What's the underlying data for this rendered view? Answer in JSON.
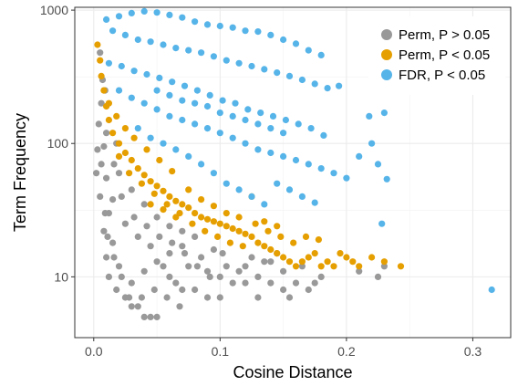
{
  "chart_data": {
    "type": "scatter",
    "xlabel": "Cosine Distance",
    "ylabel": "Term Frequency",
    "xlim": [
      -0.015,
      0.33
    ],
    "ylim": [
      3.5,
      1050
    ],
    "y_scale": "log",
    "x_ticks": [
      {
        "value": 0.0,
        "label": "0.0"
      },
      {
        "value": 0.1,
        "label": "0.1"
      },
      {
        "value": 0.2,
        "label": "0.2"
      },
      {
        "value": 0.3,
        "label": "0.3"
      }
    ],
    "y_ticks": [
      {
        "value": 10,
        "label": "10"
      },
      {
        "value": 100,
        "label": "100"
      },
      {
        "value": 1000,
        "label": "1000"
      }
    ],
    "grid": true,
    "legend_position": "top-right",
    "colors": {
      "grey": "#999999",
      "orange": "#e69f00",
      "blue": "#56b4e9"
    },
    "series": [
      {
        "name": "Perm, P > 0.05",
        "color": "#999999",
        "points": [
          [
            0.005,
            480
          ],
          [
            0.007,
            300
          ],
          [
            0.006,
            200
          ],
          [
            0.004,
            140
          ],
          [
            0.008,
            95
          ],
          [
            0.006,
            70
          ],
          [
            0.01,
            55
          ],
          [
            0.005,
            40
          ],
          [
            0.012,
            30
          ],
          [
            0.008,
            22
          ],
          [
            0.015,
            18
          ],
          [
            0.01,
            14
          ],
          [
            0.02,
            12
          ],
          [
            0.012,
            10
          ],
          [
            0.018,
            8
          ],
          [
            0.025,
            7
          ],
          [
            0.03,
            6
          ],
          [
            0.035,
            6
          ],
          [
            0.04,
            5
          ],
          [
            0.045,
            5
          ],
          [
            0.05,
            5
          ],
          [
            0.03,
            9
          ],
          [
            0.04,
            11
          ],
          [
            0.05,
            13
          ],
          [
            0.06,
            10
          ],
          [
            0.07,
            8
          ],
          [
            0.08,
            8
          ],
          [
            0.09,
            7
          ],
          [
            0.1,
            7
          ],
          [
            0.11,
            9
          ],
          [
            0.12,
            12
          ],
          [
            0.13,
            10
          ],
          [
            0.14,
            9
          ],
          [
            0.15,
            8
          ],
          [
            0.155,
            7
          ],
          [
            0.16,
            9
          ],
          [
            0.17,
            8
          ],
          [
            0.175,
            9
          ],
          [
            0.06,
            15
          ],
          [
            0.07,
            17
          ],
          [
            0.085,
            14
          ],
          [
            0.095,
            16
          ],
          [
            0.105,
            12
          ],
          [
            0.115,
            11
          ],
          [
            0.125,
            14
          ],
          [
            0.135,
            13
          ],
          [
            0.145,
            15
          ],
          [
            0.18,
            10
          ],
          [
            0.21,
            11
          ],
          [
            0.225,
            10
          ],
          [
            0.23,
            12
          ],
          [
            0.165,
            12
          ],
          [
            0.02,
            60
          ],
          [
            0.03,
            45
          ],
          [
            0.04,
            35
          ],
          [
            0.05,
            28
          ],
          [
            0.06,
            24
          ],
          [
            0.07,
            22
          ],
          [
            0.08,
            20
          ],
          [
            0.035,
            20
          ],
          [
            0.045,
            17
          ],
          [
            0.055,
            12
          ],
          [
            0.065,
            9
          ],
          [
            0.075,
            12
          ],
          [
            0.025,
            25
          ],
          [
            0.015,
            38
          ],
          [
            0.01,
            120
          ],
          [
            0.003,
            90
          ],
          [
            0.009,
            250
          ],
          [
            0.002,
            60
          ],
          [
            0.009,
            30
          ],
          [
            0.011,
            20
          ],
          [
            0.016,
            14
          ],
          [
            0.022,
            10
          ],
          [
            0.028,
            7
          ],
          [
            0.038,
            7
          ],
          [
            0.048,
            8
          ],
          [
            0.058,
            7
          ],
          [
            0.068,
            6
          ],
          [
            0.09,
            11
          ],
          [
            0.1,
            10
          ],
          [
            0.12,
            9
          ],
          [
            0.13,
            7
          ],
          [
            0.14,
            13
          ],
          [
            0.15,
            11
          ],
          [
            0.016,
            70
          ],
          [
            0.018,
            100
          ],
          [
            0.022,
            40
          ],
          [
            0.032,
            28
          ],
          [
            0.042,
            24
          ],
          [
            0.052,
            20
          ],
          [
            0.062,
            18
          ],
          [
            0.072,
            15
          ],
          [
            0.082,
            12
          ],
          [
            0.092,
            10
          ],
          [
            0.102,
            15
          ]
        ]
      },
      {
        "name": "Perm, P < 0.05",
        "color": "#e69f00",
        "points": [
          [
            0.003,
            550
          ],
          [
            0.005,
            420
          ],
          [
            0.006,
            320
          ],
          [
            0.008,
            250
          ],
          [
            0.01,
            190
          ],
          [
            0.012,
            150
          ],
          [
            0.015,
            120
          ],
          [
            0.02,
            100
          ],
          [
            0.025,
            85
          ],
          [
            0.03,
            75
          ],
          [
            0.035,
            65
          ],
          [
            0.04,
            58
          ],
          [
            0.045,
            52
          ],
          [
            0.05,
            48
          ],
          [
            0.055,
            44
          ],
          [
            0.06,
            40
          ],
          [
            0.065,
            37
          ],
          [
            0.07,
            35
          ],
          [
            0.075,
            33
          ],
          [
            0.08,
            30
          ],
          [
            0.085,
            28
          ],
          [
            0.09,
            27
          ],
          [
            0.095,
            26
          ],
          [
            0.1,
            25
          ],
          [
            0.105,
            24
          ],
          [
            0.11,
            23
          ],
          [
            0.115,
            22
          ],
          [
            0.12,
            21
          ],
          [
            0.125,
            20
          ],
          [
            0.13,
            18
          ],
          [
            0.135,
            17
          ],
          [
            0.14,
            16
          ],
          [
            0.145,
            15
          ],
          [
            0.15,
            14
          ],
          [
            0.155,
            13
          ],
          [
            0.16,
            12
          ],
          [
            0.165,
            13
          ],
          [
            0.17,
            14
          ],
          [
            0.175,
            15
          ],
          [
            0.18,
            12
          ],
          [
            0.185,
            13
          ],
          [
            0.19,
            12
          ],
          [
            0.195,
            15
          ],
          [
            0.2,
            14
          ],
          [
            0.205,
            13
          ],
          [
            0.21,
            12
          ],
          [
            0.22,
            14
          ],
          [
            0.23,
            13
          ],
          [
            0.243,
            12
          ],
          [
            0.02,
            80
          ],
          [
            0.028,
            60
          ],
          [
            0.038,
            50
          ],
          [
            0.048,
            42
          ],
          [
            0.058,
            35
          ],
          [
            0.068,
            30
          ],
          [
            0.078,
            25
          ],
          [
            0.088,
            22
          ],
          [
            0.098,
            20
          ],
          [
            0.108,
            18
          ],
          [
            0.118,
            17
          ],
          [
            0.128,
            25
          ],
          [
            0.138,
            22
          ],
          [
            0.148,
            20
          ],
          [
            0.158,
            18
          ],
          [
            0.168,
            20
          ],
          [
            0.178,
            19
          ],
          [
            0.045,
            35
          ],
          [
            0.055,
            32
          ],
          [
            0.065,
            28
          ],
          [
            0.075,
            45
          ],
          [
            0.085,
            38
          ],
          [
            0.095,
            34
          ],
          [
            0.105,
            30
          ],
          [
            0.115,
            28
          ],
          [
            0.125,
            40
          ],
          [
            0.135,
            26
          ],
          [
            0.145,
            24
          ],
          [
            0.012,
            200
          ],
          [
            0.018,
            160
          ],
          [
            0.025,
            130
          ],
          [
            0.032,
            110
          ],
          [
            0.042,
            90
          ],
          [
            0.052,
            75
          ],
          [
            0.062,
            62
          ]
        ]
      },
      {
        "name": "FDR, P < 0.05",
        "color": "#56b4e9",
        "points": [
          [
            0.01,
            850
          ],
          [
            0.02,
            900
          ],
          [
            0.03,
            950
          ],
          [
            0.04,
            980
          ],
          [
            0.05,
            960
          ],
          [
            0.06,
            920
          ],
          [
            0.07,
            880
          ],
          [
            0.08,
            820
          ],
          [
            0.09,
            780
          ],
          [
            0.1,
            760
          ],
          [
            0.11,
            740
          ],
          [
            0.12,
            700
          ],
          [
            0.13,
            690
          ],
          [
            0.14,
            650
          ],
          [
            0.15,
            600
          ],
          [
            0.16,
            560
          ],
          [
            0.17,
            500
          ],
          [
            0.18,
            460
          ],
          [
            0.194,
            270
          ],
          [
            0.015,
            700
          ],
          [
            0.025,
            650
          ],
          [
            0.035,
            600
          ],
          [
            0.045,
            580
          ],
          [
            0.055,
            550
          ],
          [
            0.065,
            520
          ],
          [
            0.075,
            500
          ],
          [
            0.085,
            480
          ],
          [
            0.095,
            450
          ],
          [
            0.105,
            420
          ],
          [
            0.115,
            400
          ],
          [
            0.125,
            380
          ],
          [
            0.135,
            360
          ],
          [
            0.145,
            340
          ],
          [
            0.155,
            320
          ],
          [
            0.165,
            300
          ],
          [
            0.175,
            280
          ],
          [
            0.185,
            260
          ],
          [
            0.012,
            400
          ],
          [
            0.022,
            380
          ],
          [
            0.032,
            350
          ],
          [
            0.042,
            330
          ],
          [
            0.052,
            310
          ],
          [
            0.062,
            290
          ],
          [
            0.072,
            270
          ],
          [
            0.082,
            250
          ],
          [
            0.092,
            230
          ],
          [
            0.102,
            210
          ],
          [
            0.112,
            200
          ],
          [
            0.122,
            180
          ],
          [
            0.132,
            170
          ],
          [
            0.142,
            160
          ],
          [
            0.152,
            150
          ],
          [
            0.162,
            140
          ],
          [
            0.172,
            130
          ],
          [
            0.182,
            115
          ],
          [
            0.02,
            250
          ],
          [
            0.03,
            220
          ],
          [
            0.04,
            200
          ],
          [
            0.05,
            180
          ],
          [
            0.06,
            160
          ],
          [
            0.07,
            150
          ],
          [
            0.08,
            140
          ],
          [
            0.09,
            130
          ],
          [
            0.1,
            120
          ],
          [
            0.11,
            110
          ],
          [
            0.12,
            100
          ],
          [
            0.13,
            90
          ],
          [
            0.14,
            85
          ],
          [
            0.15,
            80
          ],
          [
            0.16,
            75
          ],
          [
            0.17,
            70
          ],
          [
            0.18,
            65
          ],
          [
            0.19,
            60
          ],
          [
            0.2,
            55
          ],
          [
            0.21,
            80
          ],
          [
            0.22,
            100
          ],
          [
            0.218,
            160
          ],
          [
            0.23,
            170
          ],
          [
            0.225,
            70
          ],
          [
            0.232,
            54
          ],
          [
            0.228,
            25
          ],
          [
            0.315,
            8
          ],
          [
            0.035,
            130
          ],
          [
            0.045,
            110
          ],
          [
            0.055,
            100
          ],
          [
            0.065,
            90
          ],
          [
            0.075,
            80
          ],
          [
            0.085,
            70
          ],
          [
            0.095,
            60
          ],
          [
            0.105,
            50
          ],
          [
            0.115,
            45
          ],
          [
            0.125,
            40
          ],
          [
            0.135,
            35
          ],
          [
            0.145,
            50
          ],
          [
            0.155,
            45
          ],
          [
            0.165,
            40
          ],
          [
            0.175,
            36
          ],
          [
            0.05,
            250
          ],
          [
            0.06,
            230
          ],
          [
            0.07,
            210
          ],
          [
            0.08,
            200
          ],
          [
            0.09,
            190
          ],
          [
            0.1,
            170
          ],
          [
            0.11,
            160
          ],
          [
            0.12,
            150
          ],
          [
            0.13,
            140
          ],
          [
            0.14,
            130
          ],
          [
            0.15,
            120
          ]
        ]
      }
    ]
  }
}
